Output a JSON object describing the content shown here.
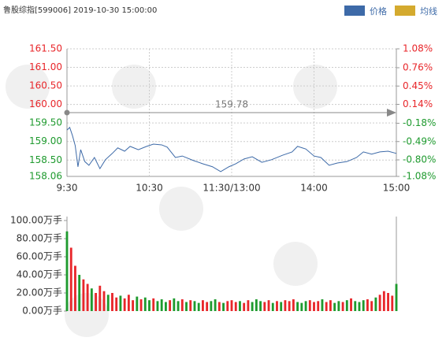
{
  "header": {
    "title": "鲁股综指[599006] 2019-10-30 15:00:00"
  },
  "legend": [
    {
      "name": "价格",
      "color": "#3d6aa8"
    },
    {
      "name": "均线",
      "color": "#d4aa2e"
    }
  ],
  "chart_data": [
    {
      "type": "line",
      "up_color": "#e8262a",
      "down_color": "#1e9a2e",
      "reference": 159.78,
      "x": [
        0,
        2,
        4,
        6,
        8,
        10,
        13,
        16,
        20,
        24,
        28,
        33,
        37,
        42,
        46,
        52,
        58,
        63,
        69,
        73,
        79,
        84,
        92,
        99,
        106,
        112,
        118,
        123,
        129,
        135,
        142,
        149,
        157,
        164,
        168,
        174,
        180,
        185,
        191,
        197,
        204,
        211,
        216,
        222,
        228,
        234,
        240
      ],
      "series": [
        {
          "name": "价格",
          "color": "#3d6aa8",
          "values": [
            159.31,
            159.38,
            159.16,
            158.89,
            158.32,
            158.78,
            158.46,
            158.36,
            158.57,
            158.27,
            158.51,
            158.68,
            158.83,
            158.74,
            158.87,
            158.78,
            158.87,
            158.93,
            158.91,
            158.85,
            158.57,
            158.61,
            158.49,
            158.4,
            158.32,
            158.19,
            158.32,
            158.4,
            158.53,
            158.59,
            158.44,
            158.51,
            158.63,
            158.72,
            158.87,
            158.8,
            158.61,
            158.57,
            158.36,
            158.42,
            158.46,
            158.57,
            158.72,
            158.66,
            158.72,
            158.74,
            158.68
          ]
        }
      ],
      "xlim": [
        0,
        240
      ],
      "xticks": [
        {
          "value": 0,
          "label": "9:30"
        },
        {
          "value": 60,
          "label": "10:30"
        },
        {
          "value": 120,
          "label": "11:30/13:00"
        },
        {
          "value": 180,
          "label": "14:00"
        },
        {
          "value": 240,
          "label": "15:00"
        }
      ],
      "ylim": [
        158.06,
        161.5
      ],
      "yticks": [
        {
          "value": 161.5,
          "label": "161.50"
        },
        {
          "value": 161,
          "label": "161.00"
        },
        {
          "value": 160.5,
          "label": "160.50"
        },
        {
          "value": 160,
          "label": "160.00"
        },
        {
          "value": 159.5,
          "label": "159.50"
        },
        {
          "value": 159,
          "label": "159.00"
        },
        {
          "value": 158.5,
          "label": "158.50"
        },
        158.06
      ],
      "y2lim": [
        -1.08,
        1.08
      ],
      "y2ticks": [
        {
          "value": 1.08,
          "label": "1.08%"
        },
        {
          "value": 0.76,
          "label": "0.76%"
        },
        {
          "value": 0.45,
          "label": "0.45%"
        },
        {
          "value": 0.14,
          "label": "0.14%"
        },
        {
          "value": -0.18,
          "label": "-0.18%"
        },
        {
          "value": -0.49,
          "label": "-0.49%"
        },
        {
          "value": -0.8,
          "label": "-0.80%"
        },
        {
          "value": -1.08,
          "label": "-1.08%"
        }
      ]
    },
    {
      "type": "bar",
      "x": [
        0,
        3,
        6,
        9,
        12,
        15,
        18,
        21,
        24,
        27,
        30,
        33,
        36,
        39,
        42,
        45,
        48,
        51,
        54,
        57,
        60,
        63,
        66,
        69,
        72,
        75,
        78,
        81,
        84,
        87,
        90,
        93,
        96,
        99,
        102,
        105,
        108,
        111,
        114,
        117,
        120,
        123,
        126,
        129,
        132,
        135,
        138,
        141,
        144,
        147,
        150,
        153,
        156,
        159,
        162,
        165,
        168,
        171,
        174,
        177,
        180,
        183,
        186,
        189,
        192,
        195,
        198,
        201,
        204,
        207,
        210,
        213,
        216,
        219,
        222,
        225,
        228,
        231,
        234,
        237,
        240
      ],
      "values": [
        88,
        70,
        50,
        40,
        35,
        30,
        25,
        20,
        28,
        22,
        18,
        20,
        15,
        17,
        14,
        18,
        12,
        16,
        13,
        15,
        12,
        14,
        11,
        13,
        10,
        12,
        14,
        11,
        13,
        10,
        12,
        11,
        9,
        12,
        10,
        11,
        13,
        10,
        9,
        11,
        12,
        10,
        11,
        9,
        12,
        10,
        13,
        11,
        10,
        12,
        9,
        11,
        10,
        12,
        11,
        13,
        10,
        9,
        11,
        12,
        10,
        11,
        13,
        10,
        12,
        9,
        11,
        10,
        12,
        14,
        11,
        10,
        12,
        13,
        11,
        15,
        18,
        22,
        20,
        17,
        30
      ],
      "colors": [
        "#1e9a2e",
        "#e8262a",
        "#e8262a",
        "#1e9a2e",
        "#e8262a",
        "#e8262a",
        "#1e9a2e",
        "#e8262a",
        "#e8262a",
        "#e8262a",
        "#1e9a2e",
        "#e8262a",
        "#e8262a",
        "#1e9a2e",
        "#e8262a",
        "#e8262a",
        "#e8262a",
        "#1e9a2e",
        "#e8262a",
        "#1e9a2e",
        "#1e9a2e",
        "#e8262a",
        "#1e9a2e",
        "#1e9a2e",
        "#1e9a2e",
        "#e8262a",
        "#1e9a2e",
        "#1e9a2e",
        "#e8262a",
        "#1e9a2e",
        "#e8262a",
        "#1e9a2e",
        "#1e9a2e",
        "#e8262a",
        "#e8262a",
        "#1e9a2e",
        "#1e9a2e",
        "#e8262a",
        "#1e9a2e",
        "#e8262a",
        "#e8262a",
        "#e8262a",
        "#1e9a2e",
        "#e8262a",
        "#e8262a",
        "#1e9a2e",
        "#1e9a2e",
        "#1e9a2e",
        "#e8262a",
        "#e8262a",
        "#1e9a2e",
        "#e8262a",
        "#1e9a2e",
        "#e8262a",
        "#e8262a",
        "#e8262a",
        "#1e9a2e",
        "#1e9a2e",
        "#1e9a2e",
        "#e8262a",
        "#e8262a",
        "#e8262a",
        "#1e9a2e",
        "#e8262a",
        "#e8262a",
        "#1e9a2e",
        "#1e9a2e",
        "#e8262a",
        "#1e9a2e",
        "#e8262a",
        "#1e9a2e",
        "#1e9a2e",
        "#1e9a2e",
        "#e8262a",
        "#e8262a",
        "#1e9a2e",
        "#e8262a",
        "#e8262a",
        "#e8262a",
        "#e8262a",
        "#1e9a2e"
      ],
      "xlim": [
        0,
        240
      ],
      "ylim": [
        0,
        100
      ],
      "yticks": [
        {
          "value": 100,
          "label": "100.00万手"
        },
        {
          "value": 80,
          "label": "80.00万手"
        },
        {
          "value": 60,
          "label": "60.00万手"
        },
        {
          "value": 40,
          "label": "40.00万手"
        },
        {
          "value": 20,
          "label": "20.00万手"
        },
        {
          "value": 0,
          "label": "0.00万手"
        }
      ]
    }
  ]
}
